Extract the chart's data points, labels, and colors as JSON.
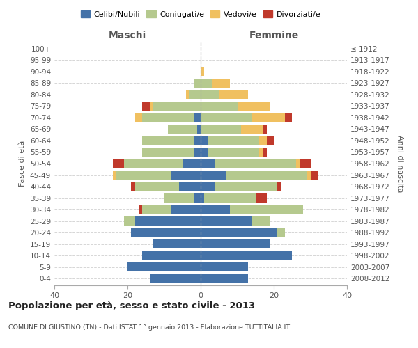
{
  "age_groups": [
    "0-4",
    "5-9",
    "10-14",
    "15-19",
    "20-24",
    "25-29",
    "30-34",
    "35-39",
    "40-44",
    "45-49",
    "50-54",
    "55-59",
    "60-64",
    "65-69",
    "70-74",
    "75-79",
    "80-84",
    "85-89",
    "90-94",
    "95-99",
    "100+"
  ],
  "birth_years": [
    "2008-2012",
    "2003-2007",
    "1998-2002",
    "1993-1997",
    "1988-1992",
    "1983-1987",
    "1978-1982",
    "1973-1977",
    "1968-1972",
    "1963-1967",
    "1958-1962",
    "1953-1957",
    "1948-1952",
    "1943-1947",
    "1938-1942",
    "1933-1937",
    "1928-1932",
    "1923-1927",
    "1918-1922",
    "1913-1917",
    "≤ 1912"
  ],
  "maschi": {
    "celibi": [
      14,
      20,
      16,
      13,
      19,
      18,
      8,
      2,
      6,
      8,
      5,
      2,
      2,
      1,
      2,
      0,
      0,
      0,
      0,
      0,
      0
    ],
    "coniugati": [
      0,
      0,
      0,
      0,
      0,
      3,
      8,
      8,
      12,
      15,
      16,
      14,
      14,
      8,
      14,
      13,
      3,
      2,
      0,
      0,
      0
    ],
    "vedovi": [
      0,
      0,
      0,
      0,
      0,
      0,
      0,
      0,
      0,
      1,
      0,
      0,
      0,
      0,
      2,
      1,
      1,
      0,
      0,
      0,
      0
    ],
    "divorziati": [
      0,
      0,
      0,
      0,
      0,
      0,
      1,
      0,
      1,
      0,
      3,
      0,
      0,
      0,
      0,
      2,
      0,
      0,
      0,
      0,
      0
    ]
  },
  "femmine": {
    "nubili": [
      13,
      13,
      25,
      19,
      21,
      14,
      8,
      1,
      4,
      7,
      4,
      2,
      2,
      0,
      0,
      0,
      0,
      0,
      0,
      0,
      0
    ],
    "coniugate": [
      0,
      0,
      0,
      0,
      2,
      5,
      20,
      14,
      17,
      22,
      22,
      14,
      14,
      11,
      14,
      10,
      5,
      3,
      0,
      0,
      0
    ],
    "vedove": [
      0,
      0,
      0,
      0,
      0,
      0,
      0,
      0,
      0,
      1,
      1,
      1,
      2,
      6,
      9,
      9,
      8,
      5,
      1,
      0,
      0
    ],
    "divorziate": [
      0,
      0,
      0,
      0,
      0,
      0,
      0,
      3,
      1,
      2,
      3,
      1,
      2,
      1,
      2,
      0,
      0,
      0,
      0,
      0,
      0
    ]
  },
  "colors": {
    "celibi": "#4472a8",
    "coniugati": "#b5c98e",
    "vedovi": "#f0c060",
    "divorziati": "#c0392b"
  },
  "xlim": 40,
  "title": "Popolazione per età, sesso e stato civile - 2013",
  "subtitle": "COMUNE DI GIUSTINO (TN) - Dati ISTAT 1° gennaio 2013 - Elaborazione TUTTITALIA.IT",
  "ylabel_left": "Fasce di età",
  "ylabel_right": "Anni di nascita",
  "xlabel_maschi": "Maschi",
  "xlabel_femmine": "Femmine"
}
